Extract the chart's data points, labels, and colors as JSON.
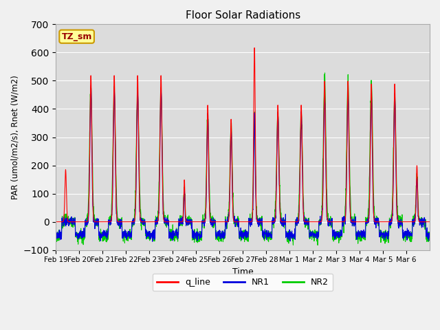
{
  "title": "Floor Solar Radiations",
  "xlabel": "Time",
  "ylabel": "PAR (umol/m2/s), Rnet (W/m2)",
  "ylim": [
    -100,
    700
  ],
  "yticks": [
    -100,
    0,
    100,
    200,
    300,
    400,
    500,
    600,
    700
  ],
  "bg_color": "#dcdcdc",
  "annotation_text": "TZ_sm",
  "annotation_bg": "#ffff99",
  "annotation_edge": "#cc9900",
  "line_colors": {
    "q_line": "#ff0000",
    "NR1": "#0000dd",
    "NR2": "#00cc00"
  },
  "tick_labels": [
    "Feb 19",
    "Feb 20",
    "Feb 21",
    "Feb 22",
    "Feb 23",
    "Feb 24",
    "Feb 25",
    "Feb 26",
    "Feb 27",
    "Feb 28",
    "Mar 1",
    "Mar 2",
    "Mar 3",
    "Mar 4",
    "Mar 5",
    "Mar 6"
  ],
  "n_days": 16,
  "ppd": 144,
  "seed": 7
}
